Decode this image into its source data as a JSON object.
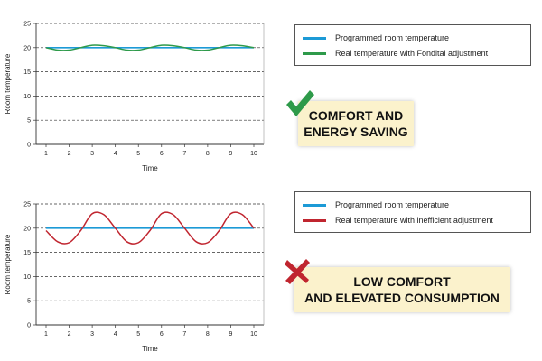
{
  "chart_data": [
    {
      "type": "line",
      "xlabel": "Time",
      "ylabel": "Room temperature",
      "xlim": [
        1,
        10
      ],
      "ylim": [
        0,
        25
      ],
      "x_ticks": [
        1,
        2,
        3,
        4,
        5,
        6,
        7,
        8,
        9,
        10
      ],
      "y_ticks": [
        0,
        5,
        10,
        15,
        20,
        25
      ],
      "grid": "dashed-horizontal",
      "series": [
        {
          "name": "Programmed room temperature",
          "color": "#1c9ad6",
          "x": [
            1,
            10
          ],
          "values": [
            20,
            20
          ]
        },
        {
          "name": "Real temperature with Fondital adjustment",
          "color": "#2e9a4a",
          "x": [
            1,
            1.5,
            2,
            2.5,
            3,
            3.5,
            4,
            4.5,
            5,
            5.5,
            6,
            6.5,
            7,
            7.5,
            8,
            8.5,
            9,
            9.5,
            10
          ],
          "values": [
            20,
            19.5,
            19.5,
            20,
            20.5,
            20.4,
            20,
            19.5,
            19.5,
            20,
            20.5,
            20.4,
            20,
            19.5,
            19.5,
            20,
            20.5,
            20.4,
            20
          ]
        }
      ]
    },
    {
      "type": "line",
      "xlabel": "Time",
      "ylabel": "Room temperature",
      "xlim": [
        1,
        10
      ],
      "ylim": [
        0,
        25
      ],
      "x_ticks": [
        1,
        2,
        3,
        4,
        5,
        6,
        7,
        8,
        9,
        10
      ],
      "y_ticks": [
        0,
        5,
        10,
        15,
        20,
        25
      ],
      "grid": "dashed-horizontal",
      "series": [
        {
          "name": "Programmed room temperature",
          "color": "#1c9ad6",
          "x": [
            1,
            10
          ],
          "values": [
            20,
            20
          ]
        },
        {
          "name": "Real temperature with inefficient adjustment",
          "color": "#c0252f",
          "x": [
            1,
            1.5,
            2,
            2.5,
            3,
            3.5,
            4,
            4.5,
            5,
            5.5,
            6,
            6.5,
            7,
            7.5,
            8,
            8.5,
            9,
            9.5,
            10
          ],
          "values": [
            19.5,
            17.2,
            17,
            19.5,
            23,
            22.8,
            20,
            17.2,
            17,
            19.5,
            23,
            22.8,
            20,
            17.2,
            17,
            19.5,
            23,
            22.8,
            20
          ]
        }
      ]
    }
  ],
  "badges": [
    {
      "line1": "COMFORT AND",
      "line2": "ENERGY SAVING",
      "icon": "check-mark-icon",
      "color": "#2e9a4a"
    },
    {
      "line1": "LOW COMFORT",
      "line2": "AND ELEVATED CONSUMPTION",
      "icon": "cross-mark-icon",
      "color": "#c0252f"
    }
  ]
}
